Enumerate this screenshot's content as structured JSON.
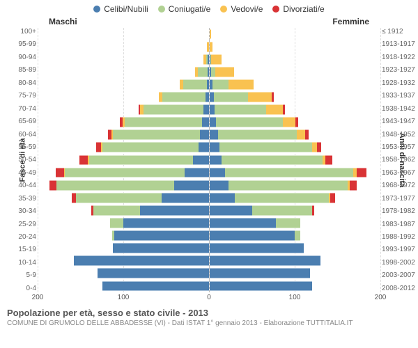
{
  "legend": [
    {
      "label": "Celibi/Nubili",
      "color": "#4b7eb0"
    },
    {
      "label": "Coniugati/e",
      "color": "#b1d193"
    },
    {
      "label": "Vedovi/e",
      "color": "#f9c251"
    },
    {
      "label": "Divorziati/e",
      "color": "#d93335"
    }
  ],
  "gender": {
    "left": "Maschi",
    "right": "Femmine"
  },
  "y_title_left": "Fasce di età",
  "y_title_right": "Anni di nascita",
  "x_axis": {
    "max": 200,
    "ticks": [
      200,
      100,
      0,
      100,
      200
    ]
  },
  "age_labels": [
    "100+",
    "95-99",
    "90-94",
    "85-89",
    "80-84",
    "75-79",
    "70-74",
    "65-69",
    "60-64",
    "55-59",
    "50-54",
    "45-49",
    "40-44",
    "35-39",
    "30-34",
    "25-29",
    "20-24",
    "15-19",
    "10-14",
    "5-9",
    "0-4"
  ],
  "year_labels": [
    "≤ 1912",
    "1913-1917",
    "1918-1922",
    "1923-1927",
    "1928-1932",
    "1933-1937",
    "1938-1942",
    "1943-1947",
    "1948-1952",
    "1953-1957",
    "1958-1962",
    "1963-1967",
    "1968-1972",
    "1973-1977",
    "1978-1982",
    "1983-1987",
    "1988-1992",
    "1993-1997",
    "1998-2002",
    "2003-2007",
    "2008-2012"
  ],
  "series_order": [
    "celibi",
    "coniugati",
    "vedovi",
    "divorziati"
  ],
  "series_colors": {
    "celibi": "#4b7eb0",
    "coniugati": "#b1d193",
    "vedovi": "#f9c251",
    "divorziati": "#d93335"
  },
  "pyramid": [
    {
      "m": {
        "celibi": 0,
        "coniugati": 0,
        "vedovi": 0,
        "divorziati": 0
      },
      "f": {
        "celibi": 0,
        "coniugati": 0,
        "vedovi": 2,
        "divorziati": 0
      }
    },
    {
      "m": {
        "celibi": 0,
        "coniugati": 0,
        "vedovi": 2,
        "divorziati": 0
      },
      "f": {
        "celibi": 0,
        "coniugati": 0,
        "vedovi": 4,
        "divorziati": 0
      }
    },
    {
      "m": {
        "celibi": 1,
        "coniugati": 2,
        "vedovi": 3,
        "divorziati": 0
      },
      "f": {
        "celibi": 1,
        "coniugati": 1,
        "vedovi": 12,
        "divorziati": 0
      }
    },
    {
      "m": {
        "celibi": 1,
        "coniugati": 12,
        "vedovi": 3,
        "divorziati": 0
      },
      "f": {
        "celibi": 2,
        "coniugati": 5,
        "vedovi": 22,
        "divorziati": 0
      }
    },
    {
      "m": {
        "celibi": 2,
        "coniugati": 28,
        "vedovi": 4,
        "divorziati": 0
      },
      "f": {
        "celibi": 4,
        "coniugati": 18,
        "vedovi": 30,
        "divorziati": 0
      }
    },
    {
      "m": {
        "celibi": 4,
        "coniugati": 50,
        "vedovi": 4,
        "divorziati": 0
      },
      "f": {
        "celibi": 5,
        "coniugati": 40,
        "vedovi": 28,
        "divorziati": 2
      }
    },
    {
      "m": {
        "celibi": 6,
        "coniugati": 70,
        "vedovi": 4,
        "divorziati": 2
      },
      "f": {
        "celibi": 6,
        "coniugati": 60,
        "vedovi": 20,
        "divorziati": 2
      }
    },
    {
      "m": {
        "celibi": 8,
        "coniugati": 90,
        "vedovi": 3,
        "divorziati": 3
      },
      "f": {
        "celibi": 8,
        "coniugati": 78,
        "vedovi": 15,
        "divorziati": 3
      }
    },
    {
      "m": {
        "celibi": 10,
        "coniugati": 102,
        "vedovi": 2,
        "divorziati": 4
      },
      "f": {
        "celibi": 10,
        "coniugati": 92,
        "vedovi": 10,
        "divorziati": 4
      }
    },
    {
      "m": {
        "celibi": 12,
        "coniugati": 112,
        "vedovi": 2,
        "divorziati": 6
      },
      "f": {
        "celibi": 12,
        "coniugati": 108,
        "vedovi": 6,
        "divorziati": 5
      }
    },
    {
      "m": {
        "celibi": 18,
        "coniugati": 122,
        "vedovi": 1,
        "divorziati": 10
      },
      "f": {
        "celibi": 14,
        "coniugati": 118,
        "vedovi": 4,
        "divorziati": 8
      }
    },
    {
      "m": {
        "celibi": 28,
        "coniugati": 140,
        "vedovi": 1,
        "divorziati": 10
      },
      "f": {
        "celibi": 18,
        "coniugati": 150,
        "vedovi": 4,
        "divorziati": 12
      }
    },
    {
      "m": {
        "celibi": 40,
        "coniugati": 138,
        "vedovi": 0,
        "divorziati": 8
      },
      "f": {
        "celibi": 22,
        "coniugati": 140,
        "vedovi": 2,
        "divorziati": 8
      }
    },
    {
      "m": {
        "celibi": 55,
        "coniugati": 100,
        "vedovi": 0,
        "divorziati": 5
      },
      "f": {
        "celibi": 30,
        "coniugati": 110,
        "vedovi": 1,
        "divorziati": 6
      }
    },
    {
      "m": {
        "celibi": 80,
        "coniugati": 55,
        "vedovi": 0,
        "divorziati": 2
      },
      "f": {
        "celibi": 50,
        "coniugati": 70,
        "vedovi": 0,
        "divorziati": 3
      }
    },
    {
      "m": {
        "celibi": 100,
        "coniugati": 15,
        "vedovi": 0,
        "divorziati": 0
      },
      "f": {
        "celibi": 78,
        "coniugati": 28,
        "vedovi": 0,
        "divorziati": 0
      }
    },
    {
      "m": {
        "celibi": 110,
        "coniugati": 3,
        "vedovi": 0,
        "divorziati": 0
      },
      "f": {
        "celibi": 100,
        "coniugati": 6,
        "vedovi": 0,
        "divorziati": 0
      }
    },
    {
      "m": {
        "celibi": 112,
        "coniugati": 0,
        "vedovi": 0,
        "divorziati": 0
      },
      "f": {
        "celibi": 110,
        "coniugati": 0,
        "vedovi": 0,
        "divorziati": 0
      }
    },
    {
      "m": {
        "celibi": 158,
        "coniugati": 0,
        "vedovi": 0,
        "divorziati": 0
      },
      "f": {
        "celibi": 130,
        "coniugati": 0,
        "vedovi": 0,
        "divorziati": 0
      }
    },
    {
      "m": {
        "celibi": 130,
        "coniugati": 0,
        "vedovi": 0,
        "divorziati": 0
      },
      "f": {
        "celibi": 118,
        "coniugati": 0,
        "vedovi": 0,
        "divorziati": 0
      }
    },
    {
      "m": {
        "celibi": 124,
        "coniugati": 0,
        "vedovi": 0,
        "divorziati": 0
      },
      "f": {
        "celibi": 120,
        "coniugati": 0,
        "vedovi": 0,
        "divorziati": 0
      }
    }
  ],
  "title": "Popolazione per età, sesso e stato civile - 2013",
  "subtitle": "COMUNE DI GRUMOLO DELLE ABBADESSE (VI) - Dati ISTAT 1° gennaio 2013 - Elaborazione TUTTITALIA.IT"
}
